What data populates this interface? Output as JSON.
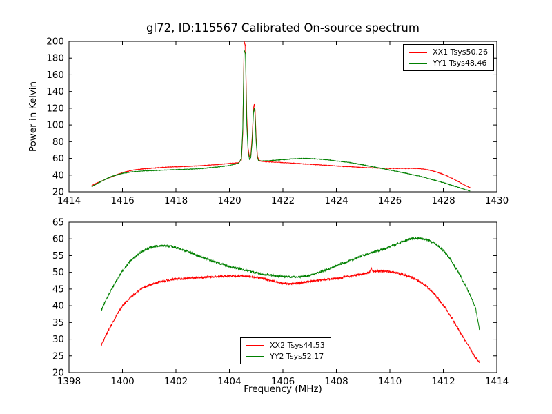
{
  "figure": {
    "title": "gl72, ID:115567 Calibrated On-source spectrum",
    "background": "#ffffff",
    "axis_color": "#000000"
  },
  "chart_data": [
    {
      "type": "line",
      "title": "gl72, ID:115567 Calibrated On-source spectrum",
      "xlabel": "",
      "ylabel": "Power in Kelvin",
      "xlim": [
        1414,
        1430
      ],
      "ylim": [
        20,
        200
      ],
      "x_ticks": [
        1414,
        1416,
        1418,
        1420,
        1422,
        1424,
        1426,
        1428,
        1430
      ],
      "y_ticks": [
        20,
        40,
        60,
        80,
        100,
        120,
        140,
        160,
        180,
        200
      ],
      "grid": false,
      "legend_position": "upper right",
      "series": [
        {
          "name": "XX1 Tsys50.26",
          "color": "#ff0000",
          "noise": 0.35,
          "points": [
            [
              1414.85,
              27.5
            ],
            [
              1415.0,
              30
            ],
            [
              1415.3,
              34
            ],
            [
              1415.6,
              38
            ],
            [
              1416.0,
              43
            ],
            [
              1416.4,
              46
            ],
            [
              1416.8,
              47.5
            ],
            [
              1417.2,
              48.5
            ],
            [
              1417.6,
              49.5
            ],
            [
              1418.0,
              50
            ],
            [
              1418.5,
              50.5
            ],
            [
              1419.0,
              51.5
            ],
            [
              1419.5,
              52.5
            ],
            [
              1420.0,
              54
            ],
            [
              1420.2,
              54.5
            ],
            [
              1420.35,
              55
            ],
            [
              1420.45,
              58
            ],
            [
              1420.5,
              90
            ],
            [
              1420.55,
              200
            ],
            [
              1420.6,
              195
            ],
            [
              1420.65,
              110
            ],
            [
              1420.7,
              72
            ],
            [
              1420.75,
              62
            ],
            [
              1420.8,
              64
            ],
            [
              1420.85,
              85
            ],
            [
              1420.9,
              120
            ],
            [
              1420.93,
              125
            ],
            [
              1420.96,
              118
            ],
            [
              1421.0,
              85
            ],
            [
              1421.05,
              63
            ],
            [
              1421.1,
              58
            ],
            [
              1421.2,
              56.5
            ],
            [
              1421.4,
              56
            ],
            [
              1421.7,
              55.5
            ],
            [
              1422.0,
              55
            ],
            [
              1422.5,
              54
            ],
            [
              1423.0,
              53
            ],
            [
              1423.5,
              52
            ],
            [
              1424.0,
              51
            ],
            [
              1424.5,
              50
            ],
            [
              1425.0,
              49
            ],
            [
              1425.5,
              48.5
            ],
            [
              1426.0,
              48
            ],
            [
              1426.5,
              48
            ],
            [
              1427.0,
              48
            ],
            [
              1427.3,
              47
            ],
            [
              1427.6,
              45
            ],
            [
              1428.0,
              41
            ],
            [
              1428.4,
              35
            ],
            [
              1428.8,
              28
            ],
            [
              1429.0,
              25
            ]
          ]
        },
        {
          "name": "YY1 Tsys48.46",
          "color": "#008000",
          "noise": 0.35,
          "points": [
            [
              1414.85,
              26
            ],
            [
              1415.0,
              29
            ],
            [
              1415.3,
              34
            ],
            [
              1415.6,
              38.5
            ],
            [
              1416.0,
              42
            ],
            [
              1416.4,
              44
            ],
            [
              1416.8,
              45
            ],
            [
              1417.2,
              45.5
            ],
            [
              1417.6,
              46
            ],
            [
              1418.0,
              46.5
            ],
            [
              1418.5,
              47
            ],
            [
              1419.0,
              48
            ],
            [
              1419.5,
              49.5
            ],
            [
              1420.0,
              51.5
            ],
            [
              1420.2,
              53
            ],
            [
              1420.35,
              54.5
            ],
            [
              1420.45,
              60
            ],
            [
              1420.5,
              95
            ],
            [
              1420.55,
              190
            ],
            [
              1420.6,
              185
            ],
            [
              1420.65,
              100
            ],
            [
              1420.7,
              68
            ],
            [
              1420.75,
              59
            ],
            [
              1420.8,
              61
            ],
            [
              1420.85,
              80
            ],
            [
              1420.9,
              115
            ],
            [
              1420.93,
              120
            ],
            [
              1420.96,
              112
            ],
            [
              1421.0,
              80
            ],
            [
              1421.05,
              60
            ],
            [
              1421.1,
              57
            ],
            [
              1421.3,
              57
            ],
            [
              1421.6,
              57.5
            ],
            [
              1422.0,
              58.5
            ],
            [
              1422.4,
              59.5
            ],
            [
              1422.8,
              60
            ],
            [
              1423.2,
              59.5
            ],
            [
              1423.6,
              58.5
            ],
            [
              1424.0,
              57
            ],
            [
              1424.4,
              55.5
            ],
            [
              1424.8,
              53.5
            ],
            [
              1425.2,
              51
            ],
            [
              1425.6,
              48.5
            ],
            [
              1426.0,
              46
            ],
            [
              1426.4,
              43.5
            ],
            [
              1426.8,
              41
            ],
            [
              1427.2,
              38
            ],
            [
              1427.6,
              34.5
            ],
            [
              1428.0,
              31
            ],
            [
              1428.4,
              27
            ],
            [
              1428.8,
              23
            ],
            [
              1429.0,
              21
            ]
          ]
        }
      ]
    },
    {
      "type": "line",
      "title": "",
      "xlabel": "Frequency (MHz)",
      "ylabel": "",
      "xlim": [
        1398,
        1414
      ],
      "ylim": [
        20,
        65
      ],
      "x_ticks": [
        1398,
        1400,
        1402,
        1404,
        1406,
        1408,
        1410,
        1412,
        1414
      ],
      "y_ticks": [
        20,
        25,
        30,
        35,
        40,
        45,
        50,
        55,
        60,
        65
      ],
      "grid": false,
      "legend_position": "lower center",
      "series": [
        {
          "name": "XX2 Tsys44.53",
          "color": "#ff0000",
          "noise": 0.3,
          "points": [
            [
              1399.2,
              28
            ],
            [
              1399.4,
              31.5
            ],
            [
              1399.7,
              36
            ],
            [
              1400.0,
              40
            ],
            [
              1400.3,
              42.5
            ],
            [
              1400.6,
              44.5
            ],
            [
              1401.0,
              46.2
            ],
            [
              1401.4,
              47.2
            ],
            [
              1401.8,
              47.8
            ],
            [
              1402.2,
              48.1
            ],
            [
              1402.6,
              48.3
            ],
            [
              1403.0,
              48.5
            ],
            [
              1403.5,
              48.7
            ],
            [
              1404.0,
              48.9
            ],
            [
              1404.4,
              48.9
            ],
            [
              1404.8,
              48.7
            ],
            [
              1405.2,
              48.2
            ],
            [
              1405.6,
              47.4
            ],
            [
              1406.0,
              46.8
            ],
            [
              1406.3,
              46.5
            ],
            [
              1406.6,
              46.8
            ],
            [
              1407.0,
              47.3
            ],
            [
              1407.5,
              47.8
            ],
            [
              1408.0,
              48.2
            ],
            [
              1408.5,
              48.8
            ],
            [
              1409.0,
              49.5
            ],
            [
              1409.25,
              50.0
            ],
            [
              1409.3,
              51.5
            ],
            [
              1409.35,
              50.2
            ],
            [
              1409.6,
              50.4
            ],
            [
              1409.9,
              50.3
            ],
            [
              1410.2,
              49.9
            ],
            [
              1410.5,
              49.3
            ],
            [
              1410.8,
              48.5
            ],
            [
              1411.1,
              47.3
            ],
            [
              1411.4,
              45.6
            ],
            [
              1411.7,
              43.2
            ],
            [
              1412.0,
              40.2
            ],
            [
              1412.3,
              36.6
            ],
            [
              1412.6,
              32.5
            ],
            [
              1412.9,
              28.5
            ],
            [
              1413.2,
              24.5
            ],
            [
              1413.35,
              23
            ]
          ]
        },
        {
          "name": "YY2 Tsys52.17",
          "color": "#008000",
          "noise": 0.3,
          "points": [
            [
              1399.2,
              38.5
            ],
            [
              1399.4,
              42
            ],
            [
              1399.7,
              46.5
            ],
            [
              1400.0,
              50.5
            ],
            [
              1400.3,
              53.5
            ],
            [
              1400.6,
              55.5
            ],
            [
              1400.9,
              57
            ],
            [
              1401.2,
              57.8
            ],
            [
              1401.5,
              58
            ],
            [
              1401.8,
              57.8
            ],
            [
              1402.1,
              57.2
            ],
            [
              1402.5,
              56
            ],
            [
              1402.9,
              54.8
            ],
            [
              1403.3,
              53.5
            ],
            [
              1403.7,
              52.5
            ],
            [
              1404.1,
              51.5
            ],
            [
              1404.5,
              50.8
            ],
            [
              1404.9,
              50
            ],
            [
              1405.3,
              49.4
            ],
            [
              1405.7,
              49
            ],
            [
              1406.1,
              48.7
            ],
            [
              1406.5,
              48.6
            ],
            [
              1406.9,
              48.9
            ],
            [
              1407.3,
              49.8
            ],
            [
              1407.7,
              51
            ],
            [
              1408.1,
              52.3
            ],
            [
              1408.5,
              53.5
            ],
            [
              1408.9,
              54.8
            ],
            [
              1409.3,
              55.8
            ],
            [
              1409.7,
              56.8
            ],
            [
              1410.1,
              58
            ],
            [
              1410.5,
              59.3
            ],
            [
              1410.8,
              60
            ],
            [
              1411.1,
              60.2
            ],
            [
              1411.4,
              59.8
            ],
            [
              1411.7,
              58.6
            ],
            [
              1412.0,
              56.5
            ],
            [
              1412.3,
              53.5
            ],
            [
              1412.6,
              49.5
            ],
            [
              1412.9,
              45
            ],
            [
              1413.2,
              39.5
            ],
            [
              1413.35,
              33
            ]
          ]
        }
      ]
    }
  ]
}
